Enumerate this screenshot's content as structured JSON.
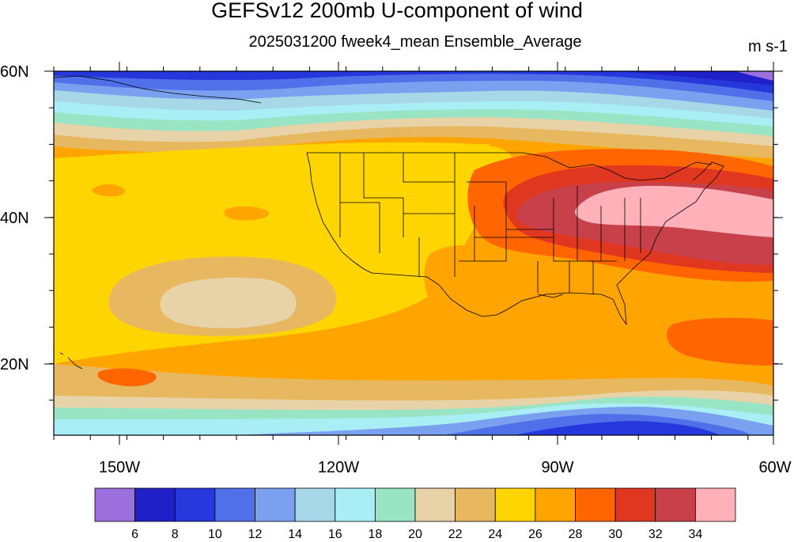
{
  "title": "GEFSv12 200mb U-component of wind",
  "subtitle": "2025031200 fweek4_mean Ensemble_Average",
  "units": "m s-1",
  "lat_ticks": [
    "60N",
    "40N",
    "20N"
  ],
  "lon_ticks": [
    "150W",
    "120W",
    "90W",
    "60W"
  ],
  "colorbar": {
    "labels": [
      "6",
      "8",
      "10",
      "12",
      "14",
      "16",
      "18",
      "20",
      "22",
      "24",
      "26",
      "28",
      "30",
      "32",
      "34"
    ],
    "colors": [
      "#9b6fdc",
      "#2020c8",
      "#2638dc",
      "#4f70e8",
      "#7ba0f0",
      "#a7d8e8",
      "#a8eef4",
      "#98e4c4",
      "#e8d2a8",
      "#e8b860",
      "#ffd500",
      "#ffa400",
      "#ff6500",
      "#e03820",
      "#c8404a",
      "#ffb0b8"
    ]
  }
}
